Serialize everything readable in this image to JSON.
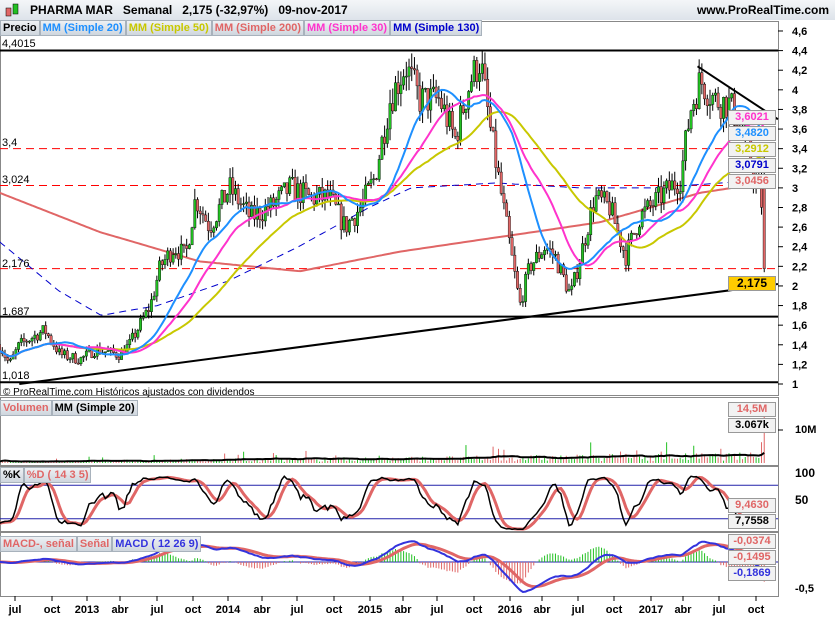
{
  "header": {
    "instrument": "PHARMA MAR",
    "period": "Semanal",
    "price_change": "2,175 (-32,97%)",
    "date": "09-nov-2017",
    "site": "www.ProRealTime.com"
  },
  "price_panel": {
    "legend": [
      "Precio",
      "MM (Simple 20)",
      "MM (Simple 50)",
      "MM (Simple 200)",
      "MM (Simple 30)",
      "MM (Simple 130)"
    ],
    "level_labels": [
      "4,4015",
      "3,4",
      "3,024",
      "2,176",
      "1,687",
      "1,018"
    ],
    "axis_ticks": [
      "4,6",
      "4,4",
      "4,2",
      "4",
      "3,8",
      "3,6",
      "3,4",
      "3,2",
      "3",
      "2,8",
      "2,6",
      "2,4",
      "2,2",
      "2",
      "1,8",
      "1,6",
      "1,4",
      "1,2",
      "1"
    ],
    "value_boxes": [
      {
        "text": "3,6021",
        "color": "#ff33cc"
      },
      {
        "text": "3,4820",
        "color": "#1e90ff"
      },
      {
        "text": "3,2912",
        "color": "#c8c800"
      },
      {
        "text": "3,0791",
        "color": "#0000cc"
      },
      {
        "text": "3,0456",
        "color": "#e06666"
      },
      {
        "text": "2,175",
        "color": "#000000"
      }
    ],
    "copyright": "© ProRealTime.com  Históricos ajustados con dividendos"
  },
  "volume_panel": {
    "legend": [
      "Volumen",
      "MM (Simple 20)"
    ],
    "axis_ticks": [
      "10M"
    ],
    "value_boxes": [
      "14,5M",
      "3.067k"
    ]
  },
  "stoch_panel": {
    "legend": [
      "%K",
      "%D ( 14 3 5)"
    ],
    "axis_ticks": [
      "100",
      "50"
    ],
    "value_boxes": [
      "9,4630",
      "7,7558"
    ]
  },
  "macd_panel": {
    "legend": [
      "MACD-, señal",
      "Señal",
      "MACD ( 12 26 9)"
    ],
    "axis_ticks": [
      "-0,5"
    ],
    "value_boxes": [
      "-0,0374",
      "-0,1495",
      "-0,1869"
    ]
  },
  "x_axis": {
    "labels": [
      "jul",
      "oct",
      "2013",
      "abr",
      "jul",
      "oct",
      "2014",
      "abr",
      "jul",
      "oct",
      "2015",
      "abr",
      "jul",
      "oct",
      "2016",
      "abr",
      "jul",
      "oct",
      "2017",
      "abr",
      "jul",
      "oct"
    ]
  },
  "chart_data": {
    "type": "candlestick",
    "title": "PHARMA MAR Semanal",
    "ylim": [
      1,
      4.6
    ],
    "price_path": [
      [
        2012.38,
        1.4
      ],
      [
        2012.45,
        1.2
      ],
      [
        2012.52,
        1.4
      ],
      [
        2012.7,
        1.55
      ],
      [
        2012.81,
        1.3
      ],
      [
        2012.95,
        1.25
      ],
      [
        2013.06,
        1.35
      ],
      [
        2013.23,
        1.3
      ],
      [
        2013.3,
        1.4
      ],
      [
        2013.45,
        1.8
      ],
      [
        2013.52,
        2.2
      ],
      [
        2013.62,
        2.4
      ],
      [
        2013.7,
        2.3
      ],
      [
        2013.77,
        2.9
      ],
      [
        2013.87,
        2.6
      ],
      [
        2014.01,
        3.0
      ],
      [
        2014.16,
        2.7
      ],
      [
        2014.3,
        2.8
      ],
      [
        2014.44,
        3.0
      ],
      [
        2014.58,
        2.9
      ],
      [
        2014.72,
        2.9
      ],
      [
        2014.83,
        2.6
      ],
      [
        2014.94,
        2.8
      ],
      [
        2015.04,
        3.1
      ],
      [
        2015.15,
        3.9
      ],
      [
        2015.26,
        4.25
      ],
      [
        2015.36,
        3.9
      ],
      [
        2015.5,
        3.9
      ],
      [
        2015.61,
        3.5
      ],
      [
        2015.72,
        4.1
      ],
      [
        2015.79,
        4.3
      ],
      [
        2015.86,
        3.6
      ],
      [
        2015.93,
        3.0
      ],
      [
        2016.0,
        2.4
      ],
      [
        2016.07,
        1.8
      ],
      [
        2016.14,
        2.2
      ],
      [
        2016.25,
        2.4
      ],
      [
        2016.32,
        2.3
      ],
      [
        2016.43,
        1.9
      ],
      [
        2016.5,
        2.3
      ],
      [
        2016.6,
        2.9
      ],
      [
        2016.71,
        2.8
      ],
      [
        2016.82,
        2.3
      ],
      [
        2016.92,
        2.7
      ],
      [
        2017.06,
        2.9
      ],
      [
        2017.21,
        3.1
      ],
      [
        2017.28,
        3.8
      ],
      [
        2017.35,
        4.1
      ],
      [
        2017.45,
        3.9
      ],
      [
        2017.56,
        3.85
      ],
      [
        2017.67,
        3.5
      ],
      [
        2017.74,
        3.05
      ],
      [
        2017.78,
        3.0
      ],
      [
        2017.8,
        2.175
      ]
    ],
    "ma200_path": [
      [
        2012.38,
        2.95
      ],
      [
        2013.09,
        2.55
      ],
      [
        2013.8,
        2.25
      ],
      [
        2014.51,
        2.15
      ],
      [
        2015.22,
        2.35
      ],
      [
        2015.93,
        2.5
      ],
      [
        2016.64,
        2.65
      ],
      [
        2017.35,
        2.95
      ],
      [
        2017.8,
        3.05
      ]
    ],
    "ma130_path": [
      [
        2012.38,
        2.45
      ],
      [
        2012.8,
        1.95
      ],
      [
        2013.1,
        1.7
      ],
      [
        2013.5,
        1.8
      ],
      [
        2014.0,
        2.05
      ],
      [
        2014.5,
        2.4
      ],
      [
        2015.0,
        2.8
      ],
      [
        2015.3,
        3.0
      ],
      [
        2015.9,
        3.05
      ],
      [
        2016.5,
        3.0
      ],
      [
        2017.0,
        3.0
      ],
      [
        2017.5,
        3.05
      ],
      [
        2017.8,
        3.08
      ]
    ],
    "horizontal_levels": {
      "solid": [
        4.4015,
        1.687,
        1.018
      ],
      "dashed": [
        3.4,
        3.024,
        2.176
      ]
    },
    "trendlines": [
      [
        [
          2012.52,
          1.0
        ],
        [
          2017.9,
          2.02
        ]
      ],
      [
        [
          2017.33,
          4.24
        ],
        [
          2017.9,
          3.7
        ]
      ]
    ],
    "last_volume_millions": 14.5,
    "colors": {
      "up": "#22c022",
      "down": "#e06666",
      "ma20": "#1e90ff",
      "ma50": "#c8c800",
      "ma200": "#e06666",
      "ma30": "#ff33cc",
      "ma130": "#0000cc"
    }
  }
}
